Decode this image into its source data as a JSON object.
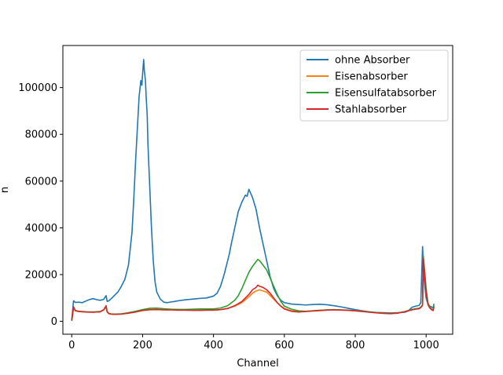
{
  "chart_data": {
    "type": "line",
    "xlabel": "Channel",
    "ylabel": "n",
    "xlim": [
      -25,
      1075
    ],
    "ylim": [
      -5500,
      118000
    ],
    "xticks": [
      0,
      200,
      400,
      600,
      800,
      1000
    ],
    "yticks": [
      0,
      20000,
      40000,
      60000,
      80000,
      100000
    ],
    "legend_position": "top-right",
    "grid": false,
    "series": [
      {
        "name": "ohne Absorber",
        "color": "#1f77b4",
        "x": [
          0,
          5,
          10,
          20,
          30,
          40,
          50,
          60,
          70,
          80,
          90,
          97,
          100,
          105,
          110,
          120,
          130,
          140,
          150,
          160,
          170,
          175,
          180,
          185,
          190,
          195,
          198,
          200,
          203,
          205,
          208,
          210,
          213,
          215,
          220,
          225,
          230,
          235,
          240,
          250,
          260,
          270,
          280,
          290,
          300,
          320,
          340,
          360,
          380,
          400,
          410,
          420,
          430,
          440,
          445,
          450,
          460,
          470,
          480,
          490,
          495,
          500,
          510,
          520,
          530,
          540,
          550,
          560,
          570,
          580,
          590,
          600,
          620,
          640,
          660,
          680,
          700,
          720,
          740,
          760,
          780,
          800,
          820,
          840,
          860,
          880,
          900,
          920,
          940,
          950,
          960,
          970,
          980,
          985,
          990,
          992,
          995,
          1000,
          1005,
          1010,
          1015,
          1020,
          1022
        ],
        "values": [
          500,
          8800,
          8100,
          8200,
          8000,
          8700,
          9300,
          9700,
          9300,
          9000,
          9400,
          11000,
          8500,
          8800,
          9500,
          11000,
          12500,
          15000,
          18000,
          24000,
          38000,
          52000,
          68000,
          82000,
          96000,
          103000,
          101000,
          106000,
          112000,
          107000,
          103000,
          96000,
          88000,
          76000,
          58000,
          40000,
          26000,
          17000,
          12500,
          9500,
          8200,
          8000,
          8300,
          8500,
          8800,
          9200,
          9500,
          9800,
          10000,
          10800,
          12000,
          15000,
          20000,
          26000,
          29000,
          33000,
          40000,
          47000,
          51000,
          54000,
          53500,
          56500,
          53000,
          48000,
          40000,
          33000,
          26000,
          19000,
          14000,
          11000,
          9000,
          8000,
          7400,
          7200,
          7000,
          7200,
          7300,
          7100,
          6700,
          6200,
          5600,
          5000,
          4500,
          4100,
          3800,
          3700,
          3600,
          3700,
          3900,
          4500,
          6000,
          6500,
          6800,
          8000,
          32000,
          25000,
          17000,
          10000,
          7500,
          6500,
          6200,
          5800,
          7500
        ]
      },
      {
        "name": "Eisenabsorber",
        "color": "#ff7f0e",
        "x": [
          0,
          5,
          10,
          20,
          40,
          60,
          80,
          90,
          97,
          100,
          105,
          110,
          120,
          140,
          160,
          180,
          200,
          220,
          240,
          260,
          280,
          300,
          320,
          340,
          360,
          380,
          400,
          420,
          440,
          460,
          480,
          500,
          510,
          520,
          530,
          540,
          550,
          560,
          570,
          580,
          590,
          600,
          620,
          640,
          660,
          680,
          700,
          720,
          740,
          760,
          780,
          800,
          820,
          840,
          860,
          880,
          900,
          920,
          940,
          960,
          970,
          980,
          985,
          990,
          992,
          995,
          1000,
          1005,
          1010,
          1015,
          1020,
          1022
        ],
        "values": [
          300,
          5800,
          4500,
          4200,
          4000,
          3900,
          4100,
          4800,
          6200,
          4000,
          3300,
          3100,
          3000,
          3100,
          3500,
          4000,
          4600,
          4900,
          5000,
          4900,
          4900,
          4800,
          4800,
          4800,
          4700,
          4800,
          4800,
          5000,
          5500,
          6500,
          8000,
          10500,
          12000,
          13000,
          13500,
          13000,
          12500,
          11000,
          9500,
          8000,
          6500,
          5500,
          4500,
          4200,
          4300,
          4500,
          4700,
          4900,
          5000,
          4900,
          4800,
          4600,
          4300,
          4000,
          3700,
          3500,
          3400,
          3600,
          4200,
          5000,
          5300,
          5500,
          6000,
          6800,
          27000,
          22000,
          13000,
          7500,
          6000,
          5200,
          4800,
          6500
        ]
      },
      {
        "name": "Eisensulfatabsorber",
        "color": "#2ca02c",
        "x": [
          0,
          5,
          10,
          20,
          40,
          60,
          80,
          90,
          97,
          100,
          105,
          110,
          120,
          140,
          160,
          180,
          200,
          220,
          240,
          260,
          280,
          300,
          320,
          340,
          360,
          380,
          400,
          420,
          440,
          460,
          470,
          480,
          490,
          500,
          510,
          520,
          525,
          530,
          540,
          550,
          560,
          570,
          580,
          590,
          600,
          620,
          640,
          660,
          680,
          700,
          720,
          740,
          760,
          780,
          800,
          820,
          840,
          860,
          880,
          900,
          920,
          940,
          960,
          970,
          980,
          985,
          990,
          992,
          995,
          1000,
          1005,
          1010,
          1015,
          1020,
          1022
        ],
        "values": [
          300,
          6000,
          4700,
          4300,
          4100,
          4000,
          4200,
          4900,
          6500,
          4100,
          3400,
          3200,
          3100,
          3200,
          3700,
          4300,
          5000,
          5600,
          5700,
          5400,
          5200,
          5100,
          5100,
          5200,
          5300,
          5300,
          5300,
          5700,
          6700,
          9000,
          11000,
          14000,
          17500,
          21000,
          23500,
          25500,
          26500,
          26000,
          24000,
          22000,
          18500,
          15000,
          11500,
          8500,
          6500,
          5200,
          4500,
          4300,
          4500,
          4700,
          4900,
          5000,
          4900,
          4700,
          4500,
          4300,
          4000,
          3700,
          3500,
          3400,
          3600,
          4200,
          5100,
          5400,
          5600,
          6100,
          7000,
          28000,
          23000,
          14000,
          8000,
          6200,
          5300,
          4900,
          6800
        ]
      },
      {
        "name": "Stahlabsorber",
        "color": "#d62728",
        "x": [
          0,
          5,
          10,
          20,
          40,
          60,
          80,
          90,
          97,
          100,
          105,
          110,
          120,
          140,
          160,
          180,
          200,
          220,
          240,
          260,
          280,
          300,
          320,
          340,
          360,
          380,
          400,
          420,
          440,
          460,
          480,
          500,
          510,
          520,
          525,
          530,
          540,
          550,
          560,
          570,
          580,
          590,
          600,
          620,
          640,
          660,
          680,
          700,
          720,
          740,
          760,
          780,
          800,
          820,
          840,
          860,
          880,
          900,
          920,
          940,
          960,
          970,
          980,
          985,
          990,
          992,
          995,
          1000,
          1005,
          1010,
          1015,
          1020,
          1022
        ],
        "values": [
          300,
          6200,
          4600,
          4200,
          4000,
          3900,
          4100,
          4900,
          6700,
          4000,
          3300,
          3100,
          3000,
          3100,
          3500,
          4000,
          4700,
          5000,
          5100,
          4900,
          4900,
          4800,
          4800,
          4700,
          4700,
          4800,
          4800,
          5000,
          5500,
          6700,
          8500,
          11500,
          13500,
          14500,
          15500,
          15000,
          14500,
          13500,
          12000,
          10000,
          8000,
          6500,
          5300,
          4300,
          4000,
          4200,
          4400,
          4600,
          4800,
          4900,
          4800,
          4700,
          4500,
          4200,
          3900,
          3600,
          3400,
          3300,
          3500,
          4100,
          4900,
          5200,
          5400,
          5900,
          7000,
          27000,
          21500,
          12500,
          7200,
          5800,
          5000,
          4600,
          6300
        ]
      }
    ]
  }
}
